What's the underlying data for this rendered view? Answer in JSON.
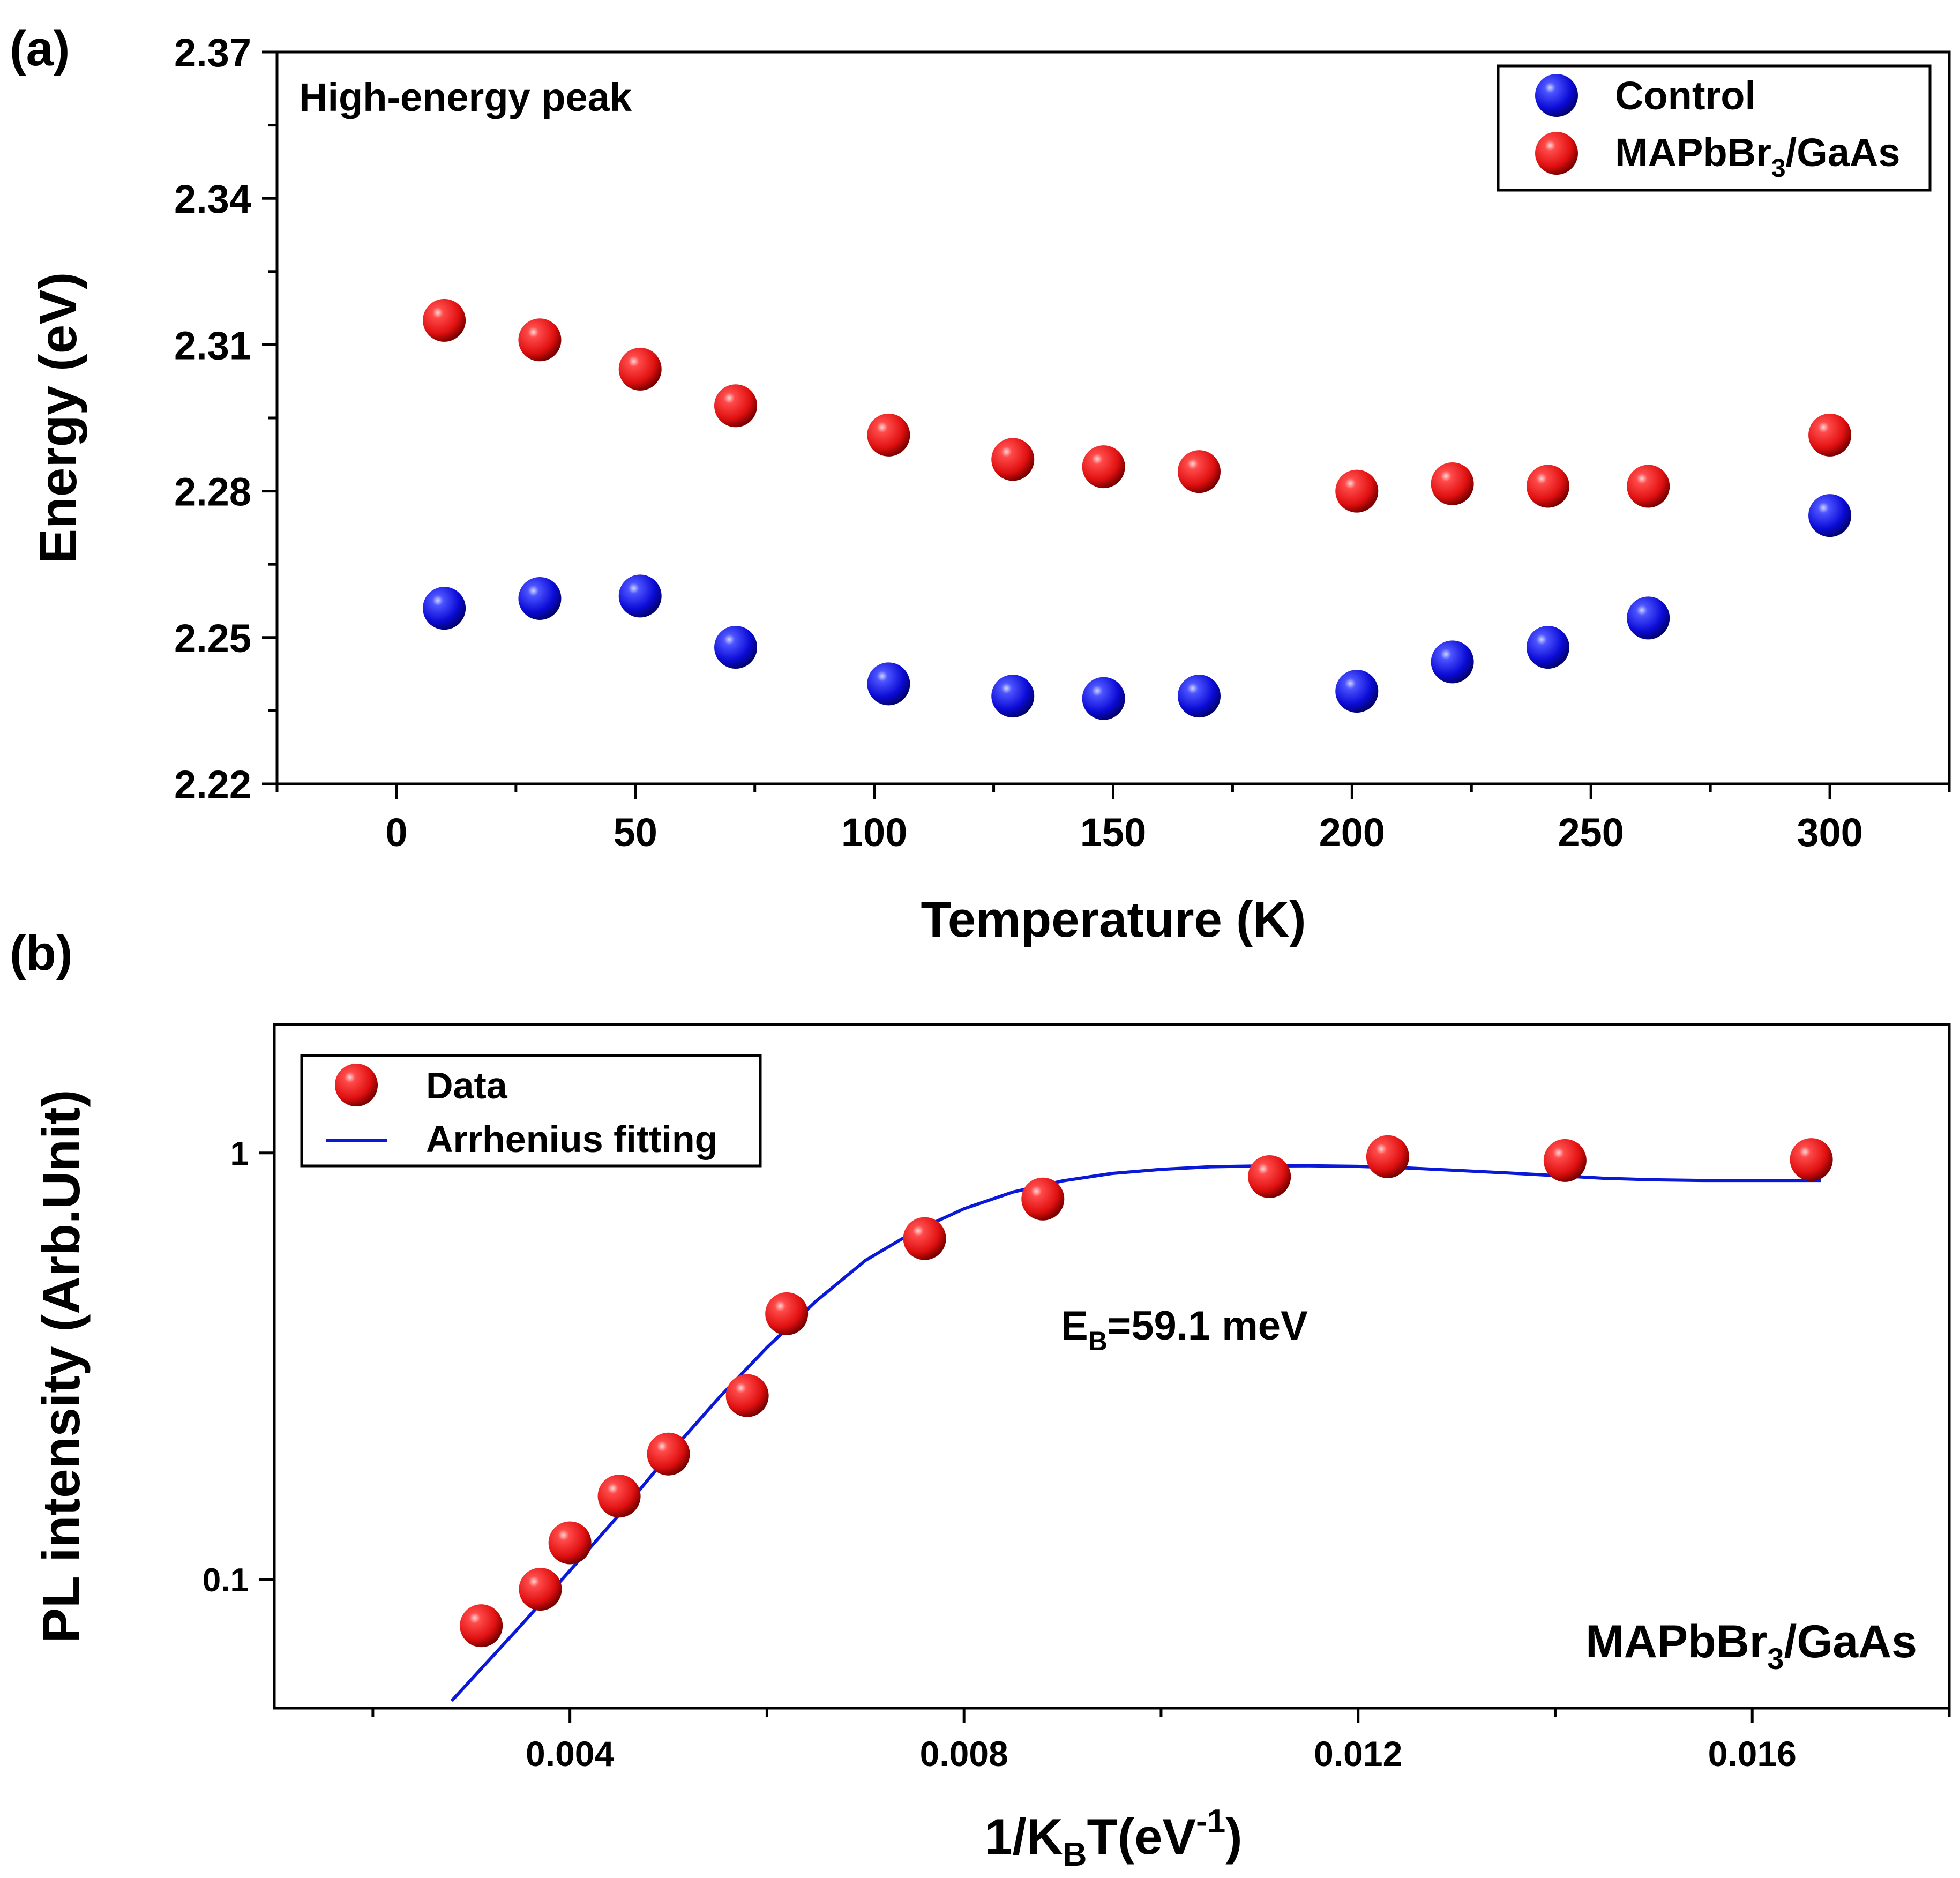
{
  "panel_a": {
    "label": "(a)",
    "annotation": "High-energy peak",
    "legend": {
      "control": "Control",
      "sample_main": "MAPbBr",
      "sample_sub": "3",
      "sample_rest": "/GaAs"
    }
  },
  "panel_b": {
    "label": "(b)",
    "annotation_main": "E",
    "annotation_sub": "B",
    "annotation_rest": "=59.1 meV",
    "corner_label_main": "MAPbBr",
    "corner_label_sub": "3",
    "corner_label_rest": "/GaAs",
    "legend": {
      "data": "Data",
      "fit": "Arrhenius fitting"
    }
  },
  "colors": {
    "control": "#0b0bd6",
    "sample": "#e01010",
    "fit": "#0a18d8"
  },
  "chart_data": [
    {
      "type": "scatter",
      "title": "High-energy peak",
      "xlabel": "Temperature (K)",
      "ylabel": "Energy (eV)",
      "xlim": [
        -25,
        325
      ],
      "ylim": [
        2.22,
        2.37
      ],
      "xticks": [
        0,
        50,
        100,
        150,
        200,
        250,
        300
      ],
      "yticks": [
        2.22,
        2.25,
        2.28,
        2.31,
        2.34,
        2.37
      ],
      "xtick_labels": [
        "0",
        "50",
        "100",
        "150",
        "200",
        "250",
        "300"
      ],
      "ytick_labels": [
        "2.22",
        "2.25",
        "2.28",
        "2.31",
        "2.34",
        "2.37"
      ],
      "series": [
        {
          "name": "Control",
          "x": [
            10,
            30,
            51,
            71,
            103,
            129,
            148,
            168,
            201,
            221,
            241,
            262,
            300
          ],
          "y": [
            2.256,
            2.258,
            2.2585,
            2.248,
            2.2405,
            2.238,
            2.2375,
            2.238,
            2.239,
            2.245,
            2.248,
            2.254,
            2.275
          ]
        },
        {
          "name": "MAPbBr3/GaAs",
          "x": [
            10,
            30,
            51,
            71,
            103,
            129,
            148,
            168,
            201,
            221,
            241,
            262,
            300
          ],
          "y": [
            2.315,
            2.311,
            2.305,
            2.2975,
            2.2915,
            2.2865,
            2.285,
            2.284,
            2.28,
            2.2815,
            2.281,
            2.281,
            2.2915
          ]
        }
      ],
      "legend_position": "top-right"
    },
    {
      "type": "scatter",
      "xlabel_main": "1/K",
      "xlabel_sub": "B",
      "xlabel_rest": "T(eV",
      "xlabel_sup": "-1",
      "xlabel_end": ")",
      "ylabel": "PL intensity (Arb.Unit)",
      "yscale": "log",
      "xlim": [
        0.001,
        0.018
      ],
      "ylim": [
        0.05,
        2
      ],
      "xticks": [
        0.004,
        0.008,
        0.012,
        0.016
      ],
      "xtick_labels": [
        "0.004",
        "0.008",
        "0.012",
        "0.016"
      ],
      "yticks": [
        0.1,
        1
      ],
      "ytick_labels": [
        "0.1",
        "1"
      ],
      "series": [
        {
          "name": "Data",
          "x": [
            0.0031,
            0.0037,
            0.004,
            0.0045,
            0.005,
            0.0058,
            0.0062,
            0.0076,
            0.0088,
            0.0111,
            0.0123,
            0.0141,
            0.0166
          ],
          "y": [
            0.078,
            0.095,
            0.122,
            0.157,
            0.197,
            0.27,
            0.42,
            0.63,
            0.78,
            0.88,
            0.98,
            0.96,
            0.965
          ]
        },
        {
          "name": "Arrhenius fitting",
          "x": [
            0.0028,
            0.0035,
            0.004,
            0.0045,
            0.005,
            0.0055,
            0.006,
            0.0065,
            0.007,
            0.0075,
            0.008,
            0.0085,
            0.009,
            0.0095,
            0.01,
            0.0105,
            0.011,
            0.0115,
            0.012,
            0.0125,
            0.013,
            0.0135,
            0.014,
            0.0145,
            0.015,
            0.0155,
            0.016,
            0.0167
          ],
          "y": [
            0.052,
            0.078,
            0.105,
            0.142,
            0.196,
            0.265,
            0.35,
            0.45,
            0.56,
            0.655,
            0.74,
            0.81,
            0.86,
            0.895,
            0.915,
            0.928,
            0.932,
            0.933,
            0.93,
            0.922,
            0.91,
            0.898,
            0.885,
            0.872,
            0.865,
            0.862,
            0.862,
            0.862
          ]
        }
      ],
      "legend_position": "top-left"
    }
  ]
}
